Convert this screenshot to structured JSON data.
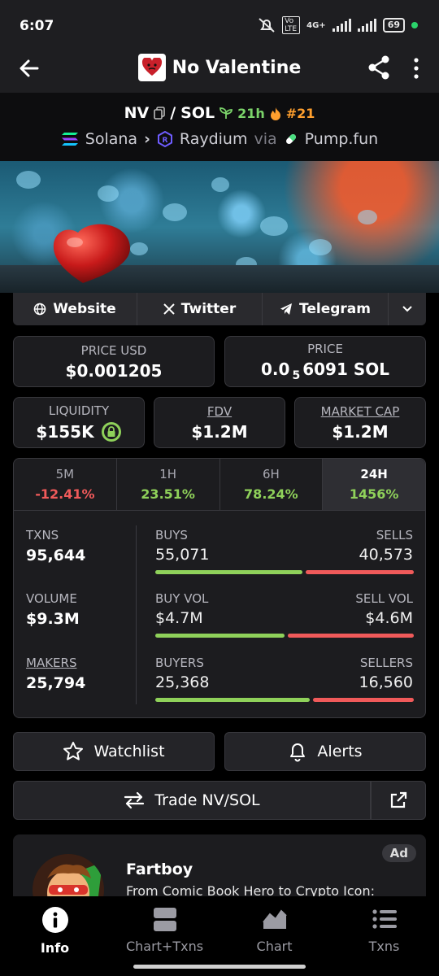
{
  "status": {
    "time": "6:07",
    "net": "4G+",
    "volte": "Vo LTE",
    "battery": "69"
  },
  "header": {
    "title": "No Valentine"
  },
  "pair": {
    "base": "NV",
    "quote": "SOL",
    "separator": "/",
    "age": "21h",
    "rank": "#21",
    "chain": "Solana",
    "dex": "Raydium",
    "via": "via",
    "launchpad": "Pump.fun"
  },
  "links": {
    "website": "Website",
    "twitter": "Twitter",
    "telegram": "Telegram"
  },
  "price": {
    "usd_label": "PRICE USD",
    "usd_value": "$0.001205",
    "native_label": "PRICE",
    "native_prefix": "0.0",
    "native_sub": "5",
    "native_rest": "6091 SOL"
  },
  "metrics": {
    "liq_label": "LIQUIDITY",
    "liq_value": "$155K",
    "fdv_label": "FDV",
    "fdv_value": "$1.2M",
    "mcap_label": "MARKET CAP",
    "mcap_value": "$1.2M"
  },
  "timeframes": [
    {
      "label": "5M",
      "value": "-12.41%"
    },
    {
      "label": "1H",
      "value": "23.51%"
    },
    {
      "label": "6H",
      "value": "78.24%"
    },
    {
      "label": "24H",
      "value": "1456%"
    }
  ],
  "stats": {
    "txns_label": "TXNS",
    "txns": "95,644",
    "volume_label": "VOLUME",
    "volume": "$9.3M",
    "makers_label": "MAKERS",
    "makers": "25,794",
    "buys_label": "BUYS",
    "buys": "55,071",
    "sells_label": "SELLS",
    "sells": "40,573",
    "buys_ratio": 0.576,
    "buyvol_label": "BUY VOL",
    "buyvol": "$4.7M",
    "sellvol_label": "SELL VOL",
    "sellvol": "$4.6M",
    "buyvol_ratio": 0.505,
    "buyers_label": "BUYERS",
    "buyers": "25,368",
    "sellers_label": "SELLERS",
    "sellers": "16,560",
    "buyers_ratio": 0.605
  },
  "actions": {
    "watchlist": "Watchlist",
    "alerts": "Alerts",
    "trade": "Trade NV/SOL"
  },
  "ad": {
    "tag": "Ad",
    "title": "Fartboy",
    "text": "From Comic Book Hero to Crypto Icon:"
  },
  "nav": [
    {
      "label": "Info",
      "icon": "info-icon"
    },
    {
      "label": "Chart+Txns",
      "icon": "split-layout-icon"
    },
    {
      "label": "Chart",
      "icon": "area-chart-icon"
    },
    {
      "label": "Txns",
      "icon": "list-icon"
    }
  ]
}
